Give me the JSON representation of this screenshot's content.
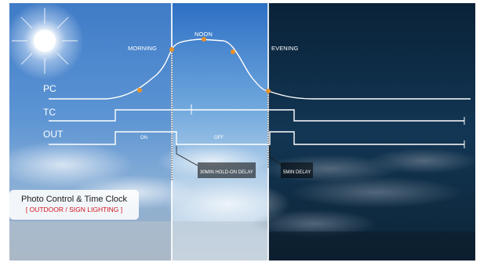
{
  "phases": {
    "morning": "MORNING",
    "noon": "NOON",
    "evening": "EVENING"
  },
  "signals": {
    "pc": "PC",
    "tc": "TC",
    "out": "OUT"
  },
  "states": {
    "on": "ON",
    "off": "OFF"
  },
  "annotations": {
    "hold_delay": "30MIN HOLD-ON DELAY",
    "short_delay": "5MIN DELAY"
  },
  "caption": {
    "title": "Photo Control & Time Clock",
    "subtitle": "[ OUTDOOR / SIGN LIGHTING ]"
  },
  "colors": {
    "marker": "#e8922a",
    "line": "#ffffff",
    "caption_subtitle": "#d1121a"
  }
}
